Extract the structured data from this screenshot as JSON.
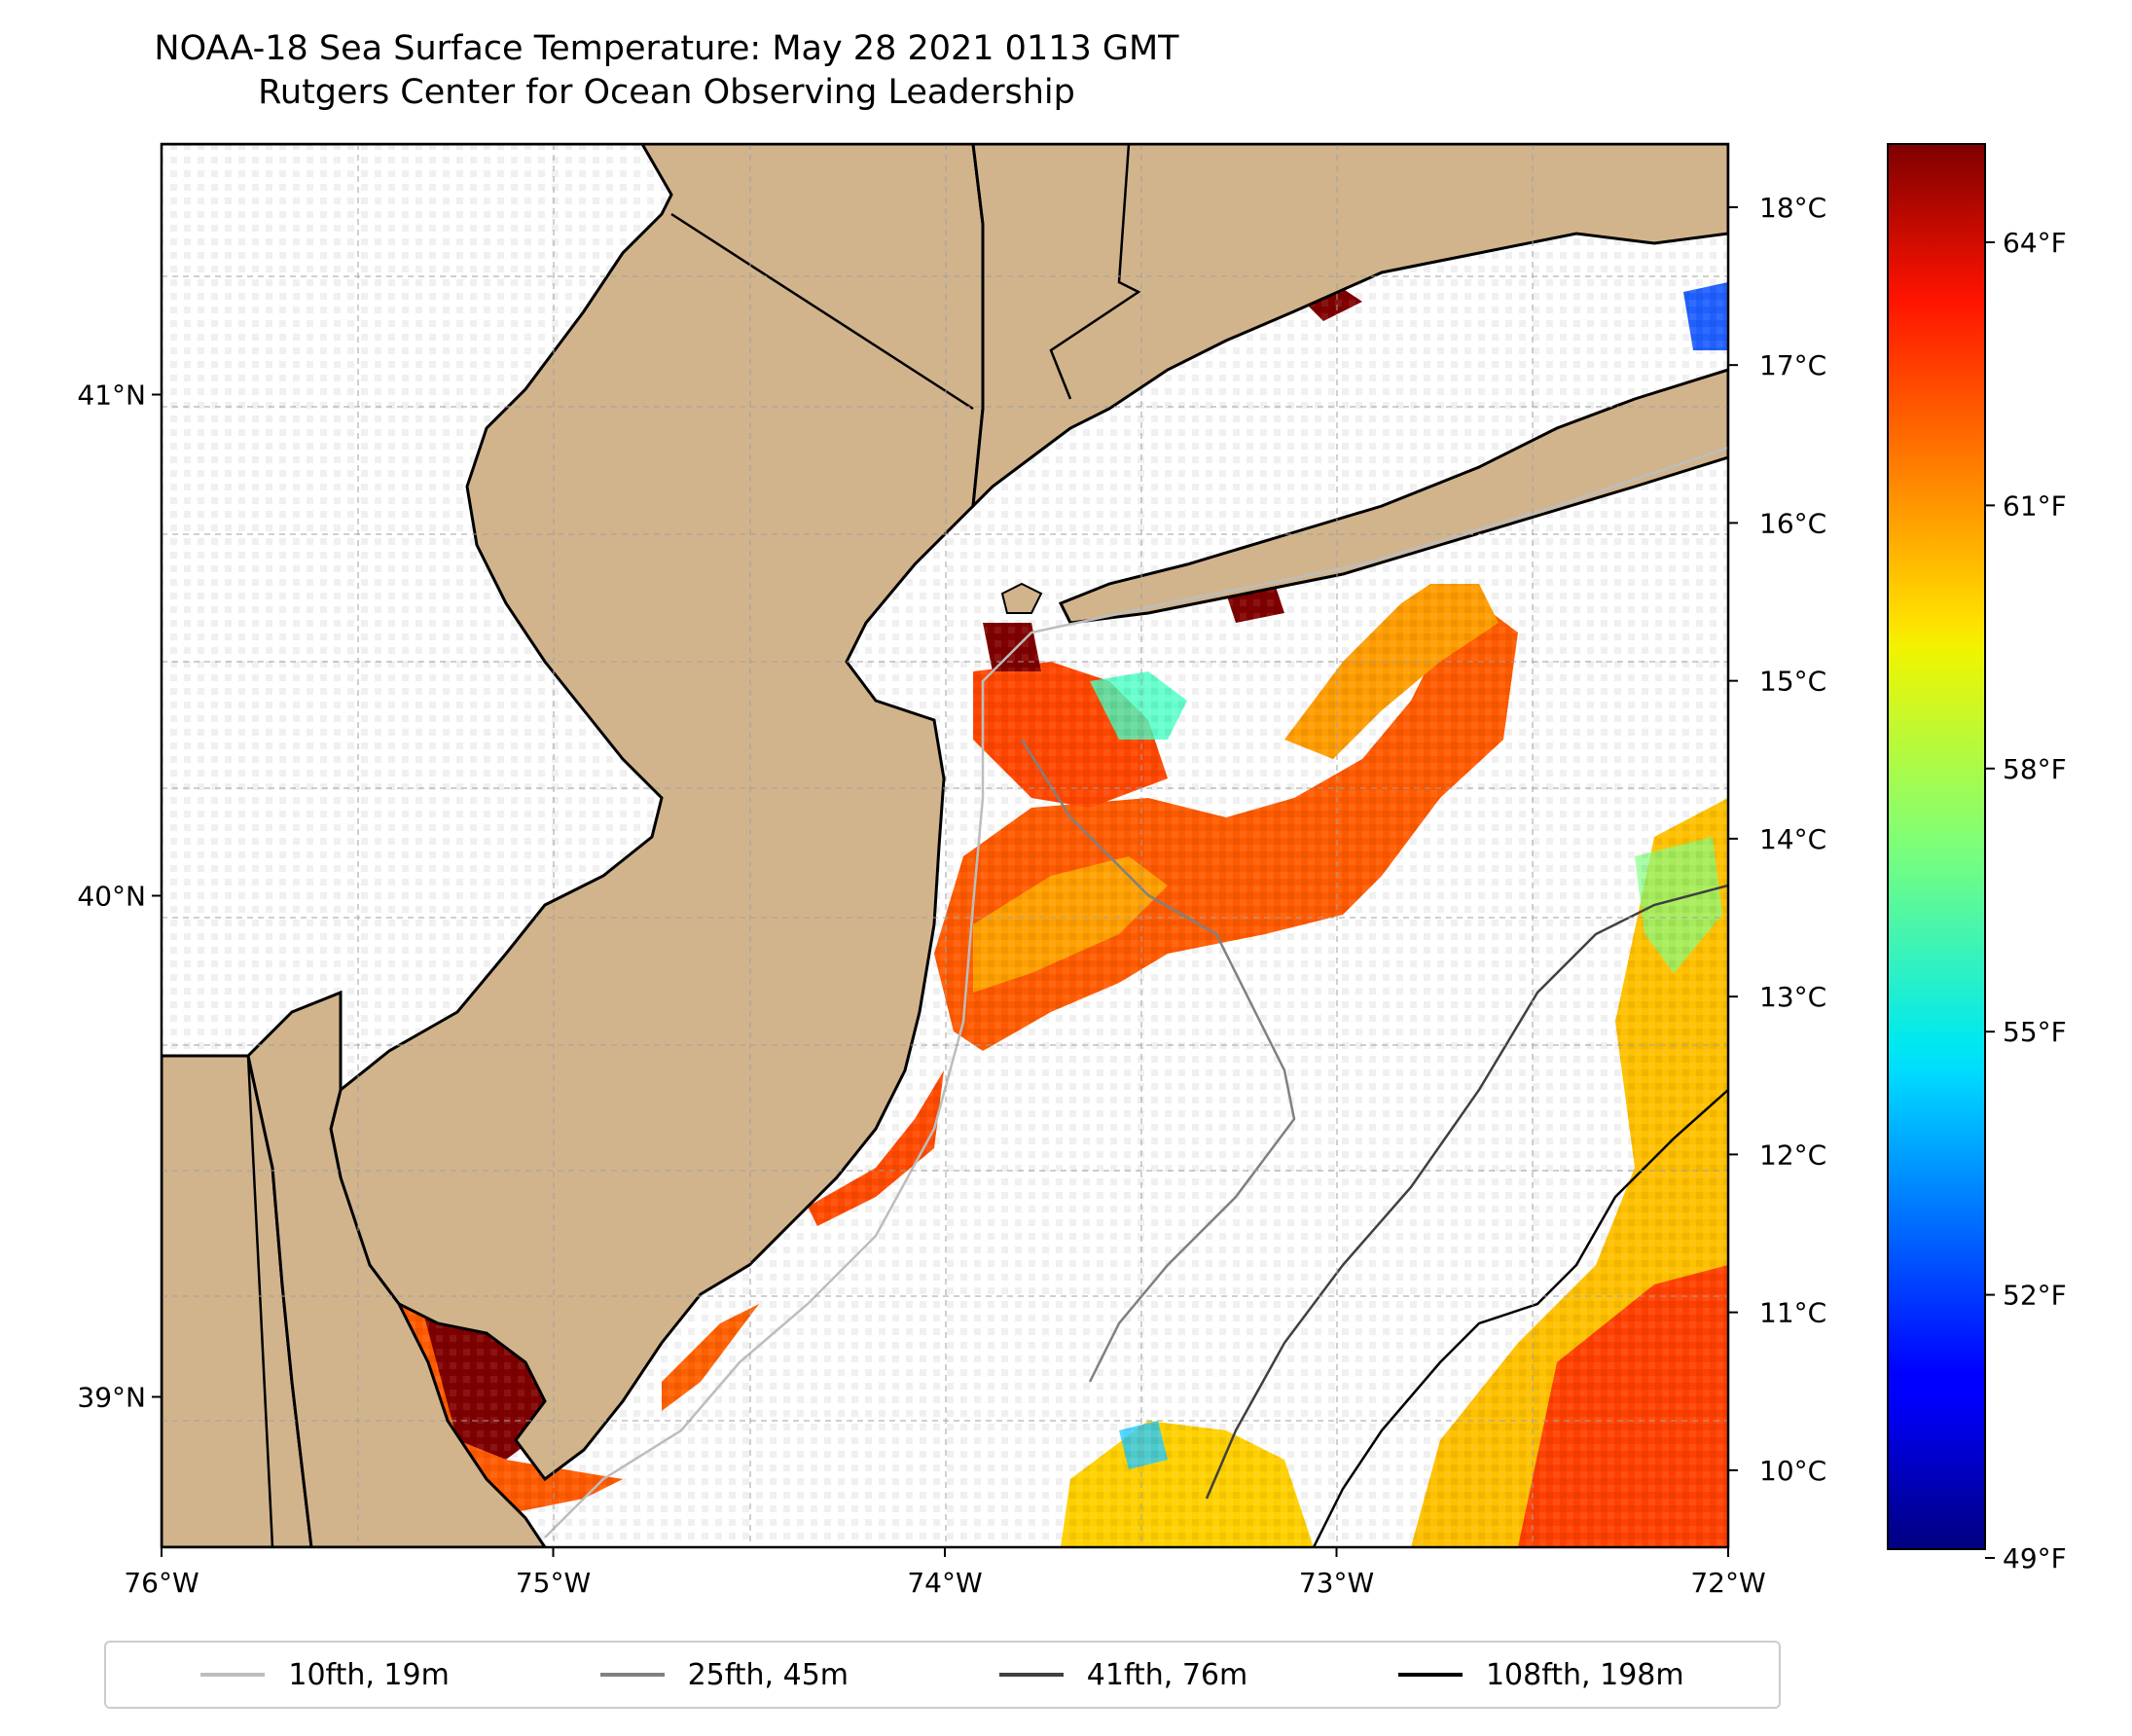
{
  "title": {
    "line1": "NOAA-18 Sea Surface Temperature: May 28 2021 0113 GMT",
    "line2": "Rutgers Center for Ocean Observing Leadership"
  },
  "map": {
    "lon_range": [
      -76,
      -72
    ],
    "lat_range": [
      38.7,
      41.5
    ],
    "lon_ticks": [
      {
        "value": -76,
        "label": "76°W"
      },
      {
        "value": -75,
        "label": "75°W"
      },
      {
        "value": -74,
        "label": "74°W"
      },
      {
        "value": -73,
        "label": "73°W"
      },
      {
        "value": -72,
        "label": "72°W"
      }
    ],
    "lat_ticks": [
      {
        "value": 41,
        "label": "41°N"
      },
      {
        "value": 40,
        "label": "40°N"
      },
      {
        "value": 39,
        "label": "39°N"
      }
    ],
    "gridlines": true,
    "land_color": "#d2b48c",
    "ocean_color": "#ffffff"
  },
  "colorbar": {
    "colormap": "jet",
    "celsius_range": [
      9.5,
      18.4
    ],
    "celsius_ticks": [
      {
        "value": 18,
        "label": "18°C"
      },
      {
        "value": 17,
        "label": "17°C"
      },
      {
        "value": 16,
        "label": "16°C"
      },
      {
        "value": 15,
        "label": "15°C"
      },
      {
        "value": 14,
        "label": "14°C"
      },
      {
        "value": 13,
        "label": "13°C"
      },
      {
        "value": 12,
        "label": "12°C"
      },
      {
        "value": 11,
        "label": "11°C"
      },
      {
        "value": 10,
        "label": "10°C"
      }
    ],
    "fahrenheit_ticks": [
      {
        "value": 64,
        "label": "64°F"
      },
      {
        "value": 61,
        "label": "61°F"
      },
      {
        "value": 58,
        "label": "58°F"
      },
      {
        "value": 55,
        "label": "55°F"
      },
      {
        "value": 52,
        "label": "52°F"
      },
      {
        "value": 49,
        "label": "49°F"
      }
    ]
  },
  "legend": {
    "items": [
      {
        "label": "10fth, 19m",
        "color": "#bdbdbd",
        "width": 4
      },
      {
        "label": "25fth, 45m",
        "color": "#808080",
        "width": 4
      },
      {
        "label": "41fth, 76m",
        "color": "#404040",
        "width": 4
      },
      {
        "label": "108fth, 198m",
        "color": "#000000",
        "width": 4
      }
    ]
  }
}
